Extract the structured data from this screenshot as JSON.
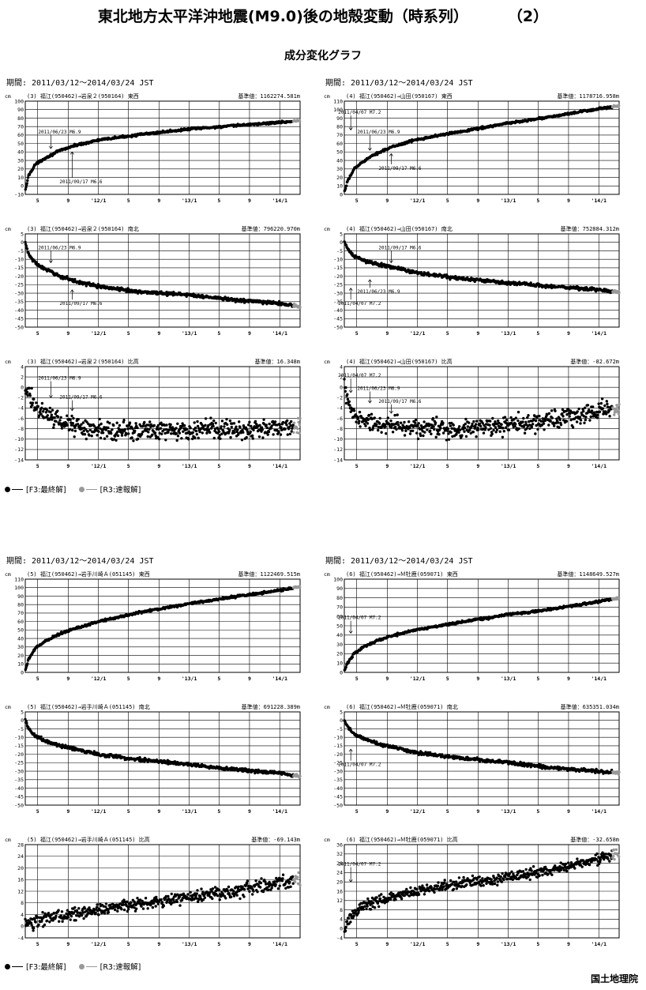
{
  "title": {
    "main": "東北地方太平洋沖地震(M9.0)後の地殻変動（時系列）",
    "part": "（2）"
  },
  "subtitle": "成分変化グラフ",
  "period_label": "期間: 2011/03/12〜2014/03/24 JST",
  "legend": {
    "final": "[F3:最終解]",
    "rapid": "[R3:速報解]",
    "final_color": "#000000",
    "rapid_color": "#999999"
  },
  "agency": "国土地理院",
  "x_axis": {
    "range": [
      "2011-03-12",
      "2014-03-24"
    ],
    "ticks": [
      {
        "date": "2011-05-01",
        "label": "5"
      },
      {
        "date": "2011-09-01",
        "label": "9"
      },
      {
        "date": "2012-01-01",
        "label": "'12/1"
      },
      {
        "date": "2012-05-01",
        "label": "5"
      },
      {
        "date": "2012-09-01",
        "label": "9"
      },
      {
        "date": "2013-01-01",
        "label": "'13/1"
      },
      {
        "date": "2013-05-01",
        "label": "5"
      },
      {
        "date": "2013-09-01",
        "label": "9"
      },
      {
        "date": "2014-01-01",
        "label": "'14/1"
      }
    ]
  },
  "chart_data": [
    {
      "type": "scatter",
      "baseline_id": "(3)",
      "title": "(3) 福江(950462)→岩泉２(950164)  東西",
      "reference": "基準値：1162274.581m",
      "ylabel": "cm",
      "ylim": [
        -10,
        100
      ],
      "yticks": [
        100,
        90,
        80,
        70,
        60,
        50,
        40,
        30,
        20,
        10,
        0,
        -10
      ],
      "curve": [
        [
          "2011-03-13",
          -5
        ],
        [
          "2011-03-25",
          12
        ],
        [
          "2011-04-20",
          25
        ],
        [
          "2011-06-01",
          33
        ],
        [
          "2011-08-01",
          42
        ],
        [
          "2011-10-01",
          48
        ],
        [
          "2012-01-01",
          54
        ],
        [
          "2012-06-01",
          60
        ],
        [
          "2013-01-01",
          67
        ],
        [
          "2013-07-01",
          71
        ],
        [
          "2014-01-01",
          75
        ],
        [
          "2014-03-24",
          77
        ]
      ],
      "noise": 0.8,
      "rapid_from": "2014-02-25",
      "annotations": [
        {
          "text": "2011/06/23 M6.9",
          "date": "2011-06-23",
          "label_y": 62,
          "arrow_to": 44
        },
        {
          "text": "2011/09/17 M6.6",
          "date": "2011-09-17",
          "label_y": 3,
          "arrow_to": 40
        }
      ]
    },
    {
      "type": "scatter",
      "baseline_id": "(4)",
      "title": "(4) 福江(950462)→山田(950167)  東西",
      "reference": "基準値：1178716.958m",
      "ylabel": "cm",
      "ylim": [
        0,
        110
      ],
      "yticks": [
        110,
        100,
        90,
        80,
        70,
        60,
        50,
        40,
        30,
        20,
        10,
        0
      ],
      "curve": [
        [
          "2011-03-13",
          3
        ],
        [
          "2011-03-25",
          15
        ],
        [
          "2011-04-20",
          30
        ],
        [
          "2011-06-01",
          40
        ],
        [
          "2011-08-01",
          50
        ],
        [
          "2011-10-01",
          57
        ],
        [
          "2012-01-01",
          65
        ],
        [
          "2012-06-01",
          73
        ],
        [
          "2013-01-01",
          84
        ],
        [
          "2013-07-01",
          92
        ],
        [
          "2014-01-01",
          101
        ],
        [
          "2014-03-24",
          104
        ]
      ],
      "noise": 0.8,
      "rapid_from": "2014-02-25",
      "annotations": [
        {
          "text": "2011/04/07 M7.2",
          "date": "2011-04-07",
          "label_y": 95,
          "arrow_to": 76
        },
        {
          "text": "2011/06/23 M6.9",
          "date": "2011-06-23",
          "label_y": 72,
          "arrow_to": 52
        },
        {
          "text": "2011/09/17 M6.6",
          "date": "2011-09-17",
          "label_y": 29,
          "arrow_to": 48
        }
      ]
    },
    {
      "type": "scatter",
      "baseline_id": "(3)",
      "title": "(3) 福江(950462)→岩泉２(950164)  南北",
      "reference": "基準値：796220.970m",
      "ylabel": "cm",
      "ylim": [
        -50,
        5
      ],
      "yticks": [
        5,
        0,
        -5,
        -10,
        -15,
        -20,
        -25,
        -30,
        -35,
        -40,
        -45,
        -50
      ],
      "curve": [
        [
          "2011-03-12",
          0
        ],
        [
          "2011-03-25",
          -7
        ],
        [
          "2011-04-20",
          -12
        ],
        [
          "2011-06-01",
          -16
        ],
        [
          "2011-08-01",
          -20
        ],
        [
          "2011-10-01",
          -23
        ],
        [
          "2012-01-01",
          -26
        ],
        [
          "2012-06-01",
          -29
        ],
        [
          "2013-01-01",
          -31
        ],
        [
          "2013-07-01",
          -34
        ],
        [
          "2014-01-01",
          -36
        ],
        [
          "2014-03-24",
          -38
        ]
      ],
      "noise": 0.6,
      "rapid_from": "2014-02-25",
      "annotations": [
        {
          "text": "2011/06/23 M6.9",
          "date": "2011-06-23",
          "label_y": -4,
          "arrow_to": -12
        },
        {
          "text": "2011/09/17 M6.6",
          "date": "2011-09-17",
          "label_y": -37,
          "arrow_to": -28
        }
      ]
    },
    {
      "type": "scatter",
      "baseline_id": "(4)",
      "title": "(4) 福江(950462)→山田(950167)  南北",
      "reference": "基準値：752884.312m",
      "ylabel": "cm",
      "ylim": [
        -50,
        5
      ],
      "yticks": [
        5,
        0,
        -5,
        -10,
        -15,
        -20,
        -25,
        -30,
        -35,
        -40,
        -45,
        -50
      ],
      "curve": [
        [
          "2011-03-12",
          0
        ],
        [
          "2011-03-25",
          -4
        ],
        [
          "2011-04-20",
          -8
        ],
        [
          "2011-06-01",
          -11
        ],
        [
          "2011-08-01",
          -13
        ],
        [
          "2011-10-01",
          -15
        ],
        [
          "2012-01-01",
          -18
        ],
        [
          "2012-06-01",
          -21
        ],
        [
          "2013-01-01",
          -24
        ],
        [
          "2013-07-01",
          -26
        ],
        [
          "2014-01-01",
          -28
        ],
        [
          "2014-03-24",
          -29
        ]
      ],
      "noise": 0.6,
      "rapid_from": "2014-02-25",
      "annotations": [
        {
          "text": "2011/09/17 M6.6",
          "date": "2011-09-17",
          "label_y": -4,
          "arrow_to": -12
        },
        {
          "text": "2011/06/23 M6.9",
          "date": "2011-06-23",
          "label_y": -30,
          "arrow_to": -22
        },
        {
          "text": "2011/04/07 M7.2",
          "date": "2011-04-07",
          "label_y": -37,
          "arrow_to": -27
        }
      ]
    },
    {
      "type": "scatter",
      "baseline_id": "(3)",
      "title": "(3) 福江(950462)→岩泉２(950164)  比高",
      "reference": "基準値：16.348m",
      "ylabel": "cm",
      "ylim": [
        -14,
        4
      ],
      "yticks": [
        4,
        2,
        0,
        -2,
        -4,
        -6,
        -8,
        -10,
        -12,
        -14
      ],
      "curve": [
        [
          "2011-03-12",
          0
        ],
        [
          "2011-04-01",
          -2
        ],
        [
          "2011-05-01",
          -4
        ],
        [
          "2011-07-01",
          -6
        ],
        [
          "2011-10-01",
          -7.5
        ],
        [
          "2012-01-01",
          -8.2
        ],
        [
          "2012-06-01",
          -8.3
        ],
        [
          "2013-01-01",
          -8.2
        ],
        [
          "2013-07-01",
          -8
        ],
        [
          "2014-01-01",
          -7.7
        ],
        [
          "2014-03-24",
          -7.5
        ]
      ],
      "noise": 1.1,
      "rapid_from": "2014-02-25",
      "annotations": [
        {
          "text": "2011/06/23 M6.9",
          "date": "2011-06-23",
          "label_y": 1.5,
          "arrow_to": -2
        },
        {
          "text": "2011/09/17 M6.6",
          "date": "2011-09-17",
          "label_y": -2.2,
          "arrow_to": -4.5
        }
      ]
    },
    {
      "type": "scatter",
      "baseline_id": "(4)",
      "title": "(4) 福江(950462)→山田(950167)  比高",
      "reference": "基準値：-82.672m",
      "ylabel": "cm",
      "ylim": [
        -14,
        4
      ],
      "yticks": [
        4,
        2,
        0,
        -2,
        -4,
        -6,
        -8,
        -10,
        -12,
        -14
      ],
      "curve": [
        [
          "2011-03-12",
          0
        ],
        [
          "2011-04-01",
          -4
        ],
        [
          "2011-05-01",
          -6
        ],
        [
          "2011-07-01",
          -7
        ],
        [
          "2011-10-01",
          -7.5
        ],
        [
          "2012-01-01",
          -7.8
        ],
        [
          "2012-06-01",
          -8
        ],
        [
          "2013-01-01",
          -7.2
        ],
        [
          "2013-07-01",
          -6.3
        ],
        [
          "2014-01-01",
          -4.6
        ],
        [
          "2014-03-24",
          -4
        ]
      ],
      "noise": 1.1,
      "rapid_from": "2014-02-25",
      "annotations": [
        {
          "text": "2011/04/07 M7.2",
          "date": "2011-04-07",
          "label_y": 2,
          "arrow_to": -1
        },
        {
          "text": "2011/06/23 M6.9",
          "date": "2011-06-23",
          "label_y": -0.5,
          "arrow_to": -3
        },
        {
          "text": "2011/09/17 M6.6",
          "date": "2011-09-17",
          "label_y": -3,
          "arrow_to": -5
        }
      ]
    },
    {
      "type": "scatter",
      "baseline_id": "(5)",
      "title": "(5) 福江(950462)→岩手川崎Ａ(051145)  東西",
      "reference": "基準値：1122469.515m",
      "ylabel": "cm",
      "ylim": [
        0,
        110
      ],
      "yticks": [
        110,
        100,
        90,
        80,
        70,
        60,
        50,
        40,
        30,
        20,
        10,
        0
      ],
      "curve": [
        [
          "2011-03-13",
          3
        ],
        [
          "2011-03-25",
          15
        ],
        [
          "2011-04-20",
          28
        ],
        [
          "2011-06-01",
          37
        ],
        [
          "2011-08-01",
          46
        ],
        [
          "2011-10-01",
          52
        ],
        [
          "2012-01-01",
          60
        ],
        [
          "2012-06-01",
          70
        ],
        [
          "2013-01-01",
          81
        ],
        [
          "2013-07-01",
          89
        ],
        [
          "2014-01-01",
          97
        ],
        [
          "2014-03-24",
          101
        ]
      ],
      "noise": 0.8,
      "rapid_from": "2014-02-25",
      "annotations": []
    },
    {
      "type": "scatter",
      "baseline_id": "(6)",
      "title": "(6) 福江(950462)→Ｍ牡鹿(059071)  東西",
      "reference": "基準値：1148649.527m",
      "ylabel": "cm",
      "ylim": [
        0,
        100
      ],
      "yticks": [
        100,
        90,
        80,
        70,
        60,
        50,
        40,
        30,
        20,
        10,
        0
      ],
      "curve": [
        [
          "2011-03-13",
          2
        ],
        [
          "2011-03-25",
          10
        ],
        [
          "2011-04-20",
          20
        ],
        [
          "2011-06-01",
          28
        ],
        [
          "2011-08-01",
          35
        ],
        [
          "2011-10-01",
          40
        ],
        [
          "2012-01-01",
          46
        ],
        [
          "2012-06-01",
          53
        ],
        [
          "2013-01-01",
          62
        ],
        [
          "2013-07-01",
          68
        ],
        [
          "2014-01-01",
          76
        ],
        [
          "2014-03-24",
          80
        ]
      ],
      "noise": 0.8,
      "rapid_from": "2014-02-25",
      "annotations": [
        {
          "text": "2011/04/07 M7.2",
          "date": "2011-04-07",
          "label_y": 57,
          "arrow_to": 42
        }
      ]
    },
    {
      "type": "scatter",
      "baseline_id": "(5)",
      "title": "(5) 福江(950462)→岩手川崎Ａ(051145)  南北",
      "reference": "基準値：691228.389m",
      "ylabel": "cm",
      "ylim": [
        -50,
        5
      ],
      "yticks": [
        5,
        0,
        -5,
        -10,
        -15,
        -20,
        -25,
        -30,
        -35,
        -40,
        -45,
        -50
      ],
      "curve": [
        [
          "2011-03-12",
          0
        ],
        [
          "2011-03-25",
          -5
        ],
        [
          "2011-04-20",
          -9
        ],
        [
          "2011-06-01",
          -12
        ],
        [
          "2011-08-01",
          -15
        ],
        [
          "2011-10-01",
          -17
        ],
        [
          "2012-01-01",
          -20
        ],
        [
          "2012-06-01",
          -23
        ],
        [
          "2013-01-01",
          -26
        ],
        [
          "2013-07-01",
          -29
        ],
        [
          "2014-01-01",
          -31
        ],
        [
          "2014-03-24",
          -33
        ]
      ],
      "noise": 0.6,
      "rapid_from": "2014-02-25",
      "annotations": []
    },
    {
      "type": "scatter",
      "baseline_id": "(6)",
      "title": "(6) 福江(950462)→Ｍ牡鹿(059071)  南北",
      "reference": "基準値：635351.034m",
      "ylabel": "cm",
      "ylim": [
        -50,
        5
      ],
      "yticks": [
        5,
        0,
        -5,
        -10,
        -15,
        -20,
        -25,
        -30,
        -35,
        -40,
        -45,
        -50
      ],
      "curve": [
        [
          "2011-03-12",
          0
        ],
        [
          "2011-03-25",
          -4
        ],
        [
          "2011-04-20",
          -8
        ],
        [
          "2011-06-01",
          -11
        ],
        [
          "2011-08-01",
          -14
        ],
        [
          "2011-10-01",
          -16
        ],
        [
          "2012-01-01",
          -19
        ],
        [
          "2012-06-01",
          -22
        ],
        [
          "2013-01-01",
          -25
        ],
        [
          "2013-07-01",
          -28
        ],
        [
          "2014-01-01",
          -30
        ],
        [
          "2014-03-24",
          -31
        ]
      ],
      "noise": 0.6,
      "rapid_from": "2014-02-25",
      "annotations": [
        {
          "text": "2011/04/07 M7.2",
          "date": "2011-04-07",
          "label_y": -27,
          "arrow_to": -17
        }
      ]
    },
    {
      "type": "scatter",
      "baseline_id": "(5)",
      "title": "(5) 福江(950462)→岩手川崎Ａ(051145)  比高",
      "reference": "基準値：-69.143m",
      "ylabel": "cm",
      "ylim": [
        -4,
        28
      ],
      "yticks": [
        28,
        24,
        20,
        16,
        12,
        8,
        4,
        0,
        -4
      ],
      "curve": [
        [
          "2011-03-12",
          0
        ],
        [
          "2011-04-01",
          1
        ],
        [
          "2011-06-01",
          2.5
        ],
        [
          "2011-09-01",
          4
        ],
        [
          "2012-01-01",
          5.5
        ],
        [
          "2012-06-01",
          7.5
        ],
        [
          "2013-01-01",
          10
        ],
        [
          "2013-07-01",
          12
        ],
        [
          "2014-01-01",
          15
        ],
        [
          "2014-03-24",
          16
        ]
      ],
      "noise": 1.3,
      "rapid_from": "2014-02-25",
      "annotations": []
    },
    {
      "type": "scatter",
      "baseline_id": "(6)",
      "title": "(6) 福江(950462)→Ｍ牡鹿(059071)  比高",
      "reference": "基準値：-32.658m",
      "ylabel": "cm",
      "ylim": [
        -4,
        36
      ],
      "yticks": [
        36,
        32,
        28,
        24,
        20,
        16,
        12,
        8,
        4,
        0,
        -4
      ],
      "curve": [
        [
          "2011-03-13",
          0
        ],
        [
          "2011-04-10",
          6
        ],
        [
          "2011-06-01",
          10
        ],
        [
          "2011-09-01",
          13
        ],
        [
          "2012-01-01",
          16
        ],
        [
          "2012-06-01",
          19
        ],
        [
          "2013-01-01",
          22
        ],
        [
          "2013-07-01",
          25
        ],
        [
          "2014-01-01",
          30
        ],
        [
          "2014-03-24",
          32
        ]
      ],
      "noise": 1.4,
      "rapid_from": "2014-02-25",
      "annotations": [
        {
          "text": "2011/04/07 M7.2",
          "date": "2011-04-07",
          "label_y": 27,
          "arrow_to": 20
        }
      ]
    }
  ]
}
